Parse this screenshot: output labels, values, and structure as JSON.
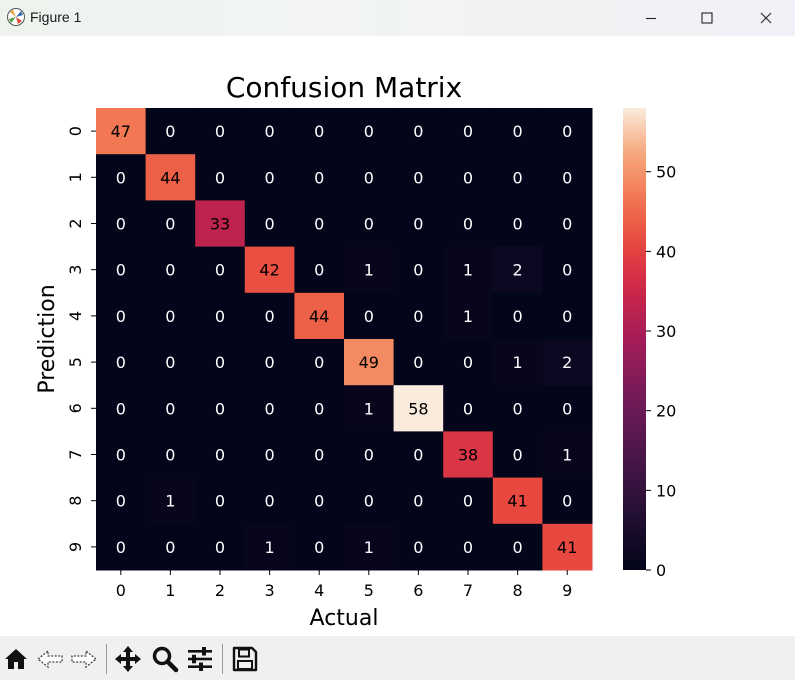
{
  "window": {
    "title": "Figure 1"
  },
  "window_controls": {
    "minimize_icon": "minimize-icon",
    "maximize_icon": "maximize-icon",
    "close_icon": "close-icon"
  },
  "toolbar": {
    "icons": [
      "home-icon",
      "back-arrow-icon",
      "forward-arrow-icon",
      "pan-icon",
      "zoom-icon",
      "configure-subplots-icon",
      "save-icon"
    ]
  },
  "chart_data": {
    "type": "heatmap",
    "title": "Confusion Matrix",
    "xlabel": "Actual",
    "ylabel": "Prediction",
    "x_ticks": [
      "0",
      "1",
      "2",
      "3",
      "4",
      "5",
      "6",
      "7",
      "8",
      "9"
    ],
    "y_ticks": [
      "0",
      "1",
      "2",
      "3",
      "4",
      "5",
      "6",
      "7",
      "8",
      "9"
    ],
    "matrix": [
      [
        47,
        0,
        0,
        0,
        0,
        0,
        0,
        0,
        0,
        0
      ],
      [
        0,
        44,
        0,
        0,
        0,
        0,
        0,
        0,
        0,
        0
      ],
      [
        0,
        0,
        33,
        0,
        0,
        0,
        0,
        0,
        0,
        0
      ],
      [
        0,
        0,
        0,
        42,
        0,
        1,
        0,
        1,
        2,
        0
      ],
      [
        0,
        0,
        0,
        0,
        44,
        0,
        0,
        1,
        0,
        0
      ],
      [
        0,
        0,
        0,
        0,
        0,
        49,
        0,
        0,
        1,
        2
      ],
      [
        0,
        0,
        0,
        0,
        0,
        1,
        58,
        0,
        0,
        0
      ],
      [
        0,
        0,
        0,
        0,
        0,
        0,
        0,
        38,
        0,
        1
      ],
      [
        0,
        1,
        0,
        0,
        0,
        0,
        0,
        0,
        41,
        0
      ],
      [
        0,
        0,
        0,
        1,
        0,
        1,
        0,
        0,
        0,
        41
      ]
    ],
    "colormap": "rocket",
    "vmin": 0,
    "vmax": 58,
    "colorbar_ticks": [
      "0",
      "10",
      "20",
      "30",
      "40",
      "50"
    ],
    "colorbar_tick_values": [
      0,
      10,
      20,
      30,
      40,
      50
    ]
  }
}
